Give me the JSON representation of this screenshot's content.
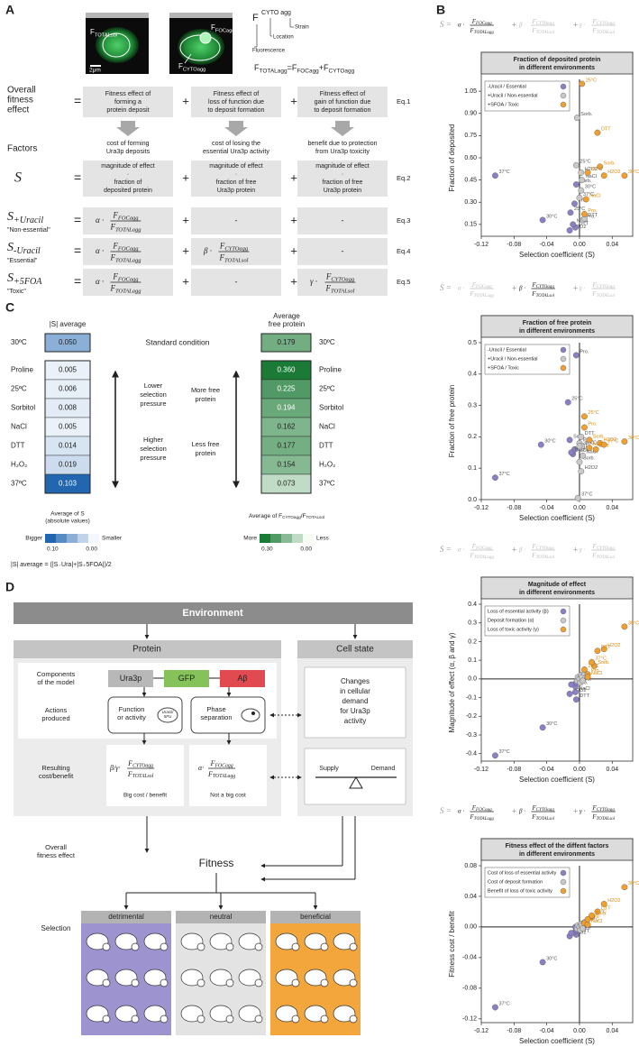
{
  "panel_a": {
    "label": "A",
    "img_total": [
      "F",
      "TOTALsol"
    ],
    "img_foc": [
      "F",
      "FOCagg"
    ],
    "img_cyto": [
      "F",
      "CYTOagg"
    ],
    "scale": "2μm",
    "notation": {
      "f": "F",
      "sub": "CYTO agg",
      "strain": "Strain",
      "location": "Location",
      "fluorescence": "Fluorescence"
    },
    "total_eq": {
      "lhs": [
        "F",
        "TOTALagg"
      ],
      "eq": "=",
      "a": [
        "F",
        "FOCagg"
      ],
      "plus": "+",
      "b": [
        "F",
        "CYTOagg"
      ]
    },
    "plus": "+",
    "equals": "=",
    "dash": "-",
    "overall": {
      "label": [
        "Overall",
        "fitness",
        "effect"
      ],
      "boxes": [
        [
          "Fitness effect of",
          "forming a",
          "protein deposit"
        ],
        [
          "Fitness effect of",
          "loss of function due",
          "to deposit formation"
        ],
        [
          "Fitness effect of",
          "gain of function due",
          "to deposit formation"
        ]
      ],
      "eq": "Eq.1"
    },
    "factors": {
      "label": "Factors",
      "texts": [
        [
          "cost of forming",
          "Ura3p deposits"
        ],
        [
          "cost of losing the",
          "essential Ura3p activity"
        ],
        [
          "benefit due to protection",
          "from Ura3p toxicity"
        ]
      ]
    },
    "s_row": {
      "label": "S",
      "boxes": [
        [
          "magnitude of effect",
          "·",
          "fraction of",
          "deposited protein"
        ],
        [
          "magnitude of effect",
          "·",
          "fraction of free",
          "Ura3p protein"
        ],
        [
          "magnitude of effect",
          "·",
          "fraction of free",
          "Ura3p protein"
        ]
      ],
      "eq": "Eq.2"
    },
    "eq_rows": [
      {
        "s": "S",
        "sub": "+Uracil",
        "tag": "\"Non-essential\"",
        "eq": "Eq.3"
      },
      {
        "s": "S",
        "sub": "-Uracil",
        "tag": "\"Essential\"",
        "eq": "Eq.4"
      },
      {
        "s": "S",
        "sub": "+5FOA",
        "tag": "\"Toxic\"",
        "eq": "Eq.5"
      }
    ]
  },
  "panel_b": {
    "label": "B",
    "formula": {
      "lhs": "S =",
      "plus": "+",
      "terms": [
        {
          "coef": "α ·",
          "num": [
            "F",
            "FOCagg"
          ],
          "den": [
            "F",
            "TOTALagg"
          ]
        },
        {
          "coef": "β ·",
          "num": [
            "F",
            "CYTOagg"
          ],
          "den": [
            "F",
            "TOTALsol"
          ]
        },
        {
          "coef": "γ ·",
          "num": [
            "F",
            "CYTOagg"
          ],
          "den": [
            "F",
            "TOTALsol"
          ]
        }
      ]
    }
  },
  "chart_data": [
    {
      "type": "scatter",
      "title": [
        "Fraction of deposited protein",
        "in different environments"
      ],
      "xlabel": "Selection coefficient (S)",
      "ylabel": "Fraction of deposited",
      "xlim": [
        -0.12,
        0.065
      ],
      "xticks": [
        -0.12,
        -0.08,
        -0.04,
        {
          "value": 0,
          "label": "0.00"
        },
        0.04
      ],
      "ylim": [
        0.07,
        1.13
      ],
      "yticks": [
        0.15,
        {
          "value": 0.3,
          "label": "0.30"
        },
        0.45,
        {
          "value": 0.6,
          "label": "0.60"
        },
        0.75,
        {
          "value": 0.9,
          "label": "0.90"
        },
        1.05
      ],
      "legend": "upper left",
      "highlight": [
        true,
        false,
        false
      ],
      "series": [
        {
          "name": "-Uracil / Essential",
          "color": "#8a80c6",
          "x": [
            -0.103,
            -0.045,
            -0.004,
            -0.006,
            -0.011,
            -0.012,
            -0.005,
            -0.008
          ],
          "values": [
            0.48,
            0.18,
            0.42,
            0.29,
            0.23,
            0.11,
            0.13,
            0.15
          ],
          "labels": [
            "37°C",
            "30°C",
            "Sorb.",
            "Pro.",
            "25°C",
            "H2O2",
            "DTT",
            "NaCl"
          ]
        },
        {
          "name": "+Uracil / Non-essential",
          "color": "#c9c9c9",
          "x": [
            -0.003,
            -0.004,
            0.002,
            0.003,
            0.0,
            0.004,
            0.006,
            0.002
          ],
          "values": [
            0.87,
            0.55,
            0.38,
            0.45,
            0.33,
            0.18,
            0.19,
            0.5
          ],
          "labels": [
            "Sorb.",
            "25°C",
            "30°C",
            "NaCl",
            "37°C",
            "Pro.",
            "DTT",
            "H2O2"
          ]
        },
        {
          "name": "+SFOA / Toxic",
          "color": "#f0a030",
          "x": [
            0.003,
            0.022,
            0.025,
            0.03,
            0.055,
            0.008,
            0.006,
            0.01
          ],
          "values": [
            1.1,
            0.77,
            0.54,
            0.48,
            0.48,
            0.32,
            0.22,
            0.5
          ],
          "labels": [
            "25°C",
            "DTT",
            "Sorb.",
            "H2O2",
            "30°C",
            "NaCl",
            "Pro.",
            "37°C"
          ]
        }
      ]
    },
    {
      "type": "scatter",
      "title": [
        "Fraction of free protein",
        "in different environments"
      ],
      "xlabel": "Selection coefficient (S)",
      "ylabel": "Fraction of free protein",
      "xlim": [
        -0.12,
        0.065
      ],
      "xticks": [
        -0.12,
        -0.08,
        -0.04,
        {
          "value": 0,
          "label": "0.00"
        },
        0.04
      ],
      "ylim": [
        0,
        0.5
      ],
      "yticks": [
        {
          "value": 0,
          "label": "0.0"
        },
        0.1,
        0.2,
        0.3,
        0.4,
        0.5
      ],
      "legend": "upper left",
      "highlight": [
        false,
        true,
        false
      ],
      "series": [
        {
          "name": "-Uracil / Essential",
          "color": "#8a80c6",
          "x": [
            -0.004,
            -0.014,
            -0.047,
            -0.103,
            -0.012,
            -0.008,
            -0.006,
            -0.01
          ],
          "values": [
            0.46,
            0.31,
            0.175,
            0.07,
            0.19,
            0.145,
            0.16,
            0.15
          ],
          "labels": [
            "Pro.",
            "25°C",
            "30°C",
            "37°C",
            "Sorb.",
            "NaCl",
            "DTT",
            "H2O2"
          ]
        },
        {
          "name": "+Uracil / Non-essential",
          "color": "#c9c9c9",
          "x": [
            -0.002,
            0.002,
            0.0,
            0.0,
            0.004,
            0.002,
            0.003,
            0.0
          ],
          "values": [
            0.005,
            0.09,
            0.12,
            0.18,
            0.14,
            0.2,
            0.17,
            0.17
          ],
          "labels": [
            "37°C",
            "H2O2",
            "Sorb.",
            "Pro.",
            "NaCl",
            "DTT",
            "25°C",
            "30°C"
          ]
        },
        {
          "name": "+SFOA / Toxic",
          "color": "#f0a030",
          "x": [
            0.055,
            0.025,
            0.02,
            0.012,
            0.006,
            0.012,
            0.006,
            0.03
          ],
          "values": [
            0.185,
            0.18,
            0.16,
            0.19,
            0.265,
            0.165,
            0.23,
            0.175
          ],
          "labels": [
            "30°C",
            "H2O2",
            "DTT",
            "Sorb.",
            "25°C",
            "NaCl",
            "Pro.",
            "37°C"
          ]
        }
      ]
    },
    {
      "type": "scatter",
      "title": [
        "Magnitude of effect",
        "in different environments"
      ],
      "xlabel": "Selection coefficient (S)",
      "ylabel": "Magnitude of effect (α, β and γ)",
      "xlim": [
        -0.12,
        0.065
      ],
      "xticks": [
        -0.12,
        -0.08,
        -0.04,
        {
          "value": 0,
          "label": "0.00"
        },
        0.04
      ],
      "ylim": [
        -0.44,
        0.4
      ],
      "yticks": [
        -0.4,
        -0.3,
        -0.2,
        -0.1,
        {
          "value": 0,
          "label": "0.0"
        },
        0.1,
        0.2,
        0.3,
        0.4
      ],
      "legend": "upper left",
      "highlight": [
        false,
        false,
        false
      ],
      "series": [
        {
          "name": "Loss of essential activity (β)",
          "color": "#8a80c6",
          "x": [
            -0.103,
            -0.045,
            -0.012,
            -0.004,
            -0.005,
            -0.005,
            -0.004,
            -0.01
          ],
          "values": [
            -0.41,
            -0.26,
            -0.08,
            -0.11,
            -0.07,
            -0.04,
            -0.02,
            -0.03
          ],
          "labels": [
            "37°C",
            "30°C",
            "H2O2",
            "DTT",
            "NaCl",
            "Pro.",
            "Sorb.",
            "25°C"
          ]
        },
        {
          "name": "Deposit formation (α)",
          "color": "#c9c9c9",
          "x": [
            -0.003,
            -0.002,
            0.0,
            0.001,
            0.002,
            0.003,
            0.004,
            0.006
          ],
          "values": [
            -0.01,
            0.01,
            0.0,
            -0.02,
            0.02,
            0.01,
            -0.01,
            0.03
          ]
        },
        {
          "name": "Loss of toxic activity (γ)",
          "color": "#f0a030",
          "x": [
            0.055,
            0.03,
            0.022,
            0.018,
            0.006,
            0.01,
            0.01,
            0.015
          ],
          "values": [
            0.28,
            0.16,
            0.15,
            0.07,
            0.05,
            0.025,
            0.01,
            0.09
          ],
          "labels": [
            "30°C",
            "H2O2",
            "DTT",
            "Sorb.",
            "25°C",
            "Pro.",
            "NaCl",
            "37°C"
          ]
        }
      ]
    },
    {
      "type": "scatter",
      "title": [
        "Fitness effect of the diffent factors",
        "in different environments"
      ],
      "xlabel": "Selection coefficient (S)",
      "ylabel": "Fitness cost / benefit",
      "xlim": [
        -0.12,
        0.065
      ],
      "xticks": [
        -0.12,
        -0.08,
        -0.04,
        {
          "value": 0,
          "label": "0.00"
        },
        0.04
      ],
      "ylim": [
        -0.125,
        0.08
      ],
      "yticks": [
        -0.12,
        -0.08,
        -0.04,
        {
          "value": 0,
          "label": "0.00"
        },
        0.04,
        0.08
      ],
      "legend": "upper left",
      "highlight": [
        true,
        true,
        true
      ],
      "series": [
        {
          "name": "Cost of loss of essential activity",
          "color": "#8a80c6",
          "x": [
            -0.103,
            -0.045,
            -0.012,
            -0.004,
            -0.005,
            -0.01,
            -0.005,
            -0.004
          ],
          "values": [
            -0.105,
            -0.046,
            -0.012,
            -0.01,
            -0.006,
            -0.008,
            0.0,
            -0.004
          ],
          "labels": [
            "37°C",
            "30°C",
            "H2O2",
            "DTT",
            "NaCl",
            "25°C",
            "Pro.",
            "Sorb."
          ]
        },
        {
          "name": "Cost of deposit formation",
          "color": "#c9c9c9",
          "x": [
            -0.003,
            -0.002,
            0.0,
            0.001,
            0.002,
            0.003,
            0.004,
            0.006
          ],
          "values": [
            -0.002,
            0.002,
            0.0,
            -0.004,
            0.004,
            0.002,
            -0.002,
            0.006
          ]
        },
        {
          "name": "Benefit of loss of toxic activity",
          "color": "#f0a030",
          "x": [
            0.055,
            0.03,
            0.022,
            0.015,
            0.006,
            0.01,
            0.01,
            0.015
          ],
          "values": [
            0.052,
            0.03,
            0.02,
            0.013,
            0.005,
            0.01,
            0.003,
            0.015
          ],
          "labels": [
            "30°C",
            "H2O2",
            "DTT",
            "Sorb.",
            "25°C",
            "Pro.",
            "NaCl",
            "37°C"
          ]
        }
      ]
    }
  ],
  "panel_c": {
    "label": "C",
    "left_header": "|S| average",
    "right_header": [
      "Average",
      "free protein"
    ],
    "standard": "Standard condition",
    "rows": [
      [
        "30ºC",
        "0.050",
        "0.179"
      ],
      [
        "Proline",
        "0.005",
        "0.360"
      ],
      [
        "25ºC",
        "0.006",
        "0.225"
      ],
      [
        "Sorbitol",
        "0.008",
        "0.194"
      ],
      [
        "NaCl",
        "0.005",
        "0.162"
      ],
      [
        "DTT",
        "0.014",
        "0.177"
      ],
      [
        "H₂O₂",
        "0.019",
        "0.154"
      ],
      [
        "37ºC",
        "0.103",
        "0.073"
      ]
    ],
    "lower": [
      "Lower",
      "selection",
      "pressure"
    ],
    "higher": [
      "Higher",
      "selection",
      "pressure"
    ],
    "more": [
      "More free",
      "protein"
    ],
    "less": [
      "Less free",
      "protein"
    ],
    "left_legend": {
      "title": [
        "Average of S",
        "(absolute values)"
      ],
      "big": "Bigger",
      "small": "Smaller",
      "max": "0.10",
      "min": "0.00"
    },
    "formula": "|S| average = (|S₋Ura|+|S₊5FOA|)/2",
    "right_legend": {
      "pre": "Average of F",
      "sub1": "CYTOagg",
      "mid": "/F",
      "sub2": "TOTALsol",
      "big": "More",
      "small": "Less",
      "max": "0.30",
      "min": "0.00"
    }
  },
  "panel_d": {
    "label": "D",
    "environment": "Environment",
    "protein": "Protein",
    "cell_state": "Cell state",
    "components": [
      "Components",
      "of the model"
    ],
    "ura3p": "Ura3p",
    "gfp": "GFP",
    "abeta": "Aβ",
    "actions": [
      "Actions",
      "produced"
    ],
    "function": [
      "Function",
      "or activity"
    ],
    "uracil": [
      "Uracil/",
      "5FU"
    ],
    "phase": [
      "Phase",
      "separation"
    ],
    "resulting": [
      "Resulting",
      "cost/benefit"
    ],
    "cost1": {
      "coef": "β/γ·",
      "num": [
        "F",
        "CYTOagg"
      ],
      "den": [
        "F",
        "TOTALsol"
      ],
      "note": "Big cost / benefit"
    },
    "cost2": {
      "coef": "α·",
      "num": [
        "F",
        "FOCagg"
      ],
      "den": [
        "F",
        "TOTALagg"
      ],
      "note": "Not a big cost"
    },
    "changes": [
      "Changes",
      "in cellular",
      "demand",
      "for Ura3p",
      "activity"
    ],
    "supply": "Supply",
    "demand": "Demand",
    "overall": [
      "Overall",
      "fitness effect"
    ],
    "fitness": "Fitness",
    "selection": "Selection",
    "outcomes": [
      "detrimental",
      "neutral",
      "beneficial"
    ]
  }
}
